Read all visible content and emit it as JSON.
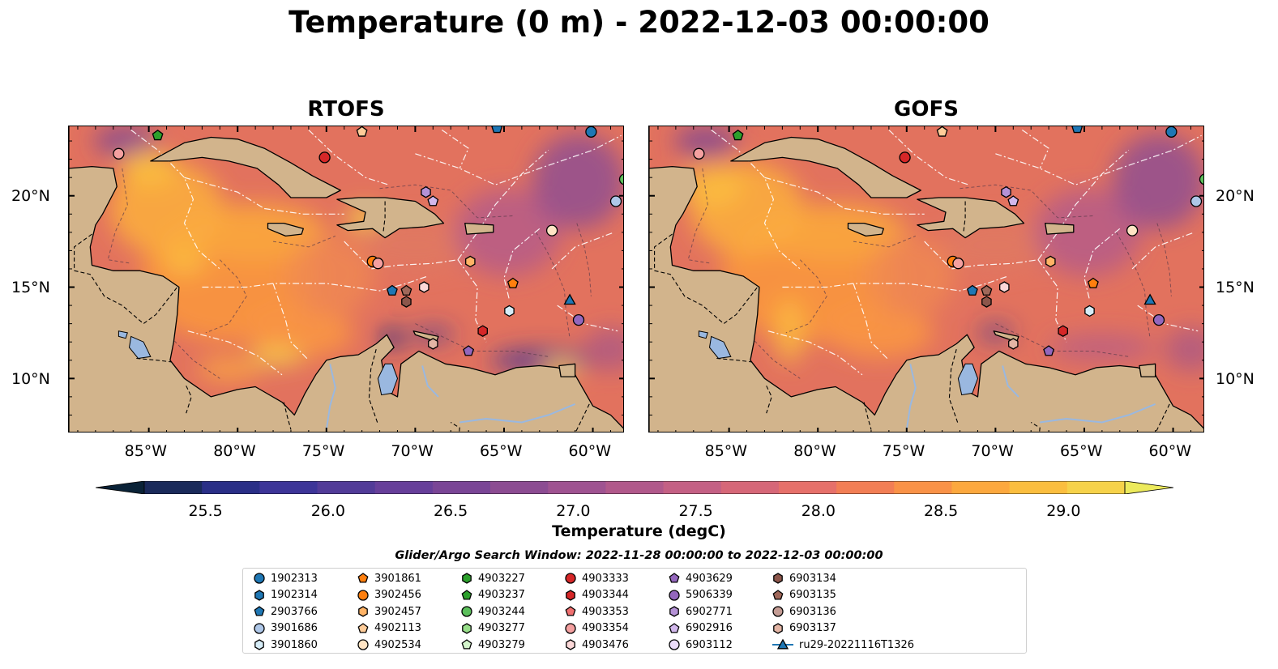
{
  "title": "Temperature (0 m) - 2022-12-03 00:00:00",
  "panels": [
    {
      "title": "RTOFS"
    },
    {
      "title": "GOFS"
    }
  ],
  "axes": {
    "lon_ticks": [
      "85°W",
      "80°W",
      "75°W",
      "70°W",
      "65°W",
      "60°W"
    ],
    "lat_ticks": [
      "20°N",
      "15°N",
      "10°N"
    ],
    "lon_range": [
      -89.5,
      -58.2
    ],
    "lat_range": [
      7.0,
      23.8
    ]
  },
  "colorbar": {
    "label": "Temperature (degC)",
    "ticks": [
      "25.5",
      "26.0",
      "26.5",
      "27.0",
      "27.5",
      "28.0",
      "28.5",
      "29.0"
    ],
    "range": [
      25.25,
      29.25
    ],
    "colormap": "thermal",
    "extend": "both",
    "colors": [
      "#0a2237",
      "#1a2a5a",
      "#2a2f87",
      "#3d3598",
      "#523b98",
      "#673f9a",
      "#7a4596",
      "#8c4c92",
      "#9f5391",
      "#b1598b",
      "#c46084",
      "#d66778",
      "#e6706a",
      "#f27e55",
      "#f99247",
      "#fca83e",
      "#fbbe3f",
      "#f6d24a",
      "#ecea5c"
    ]
  },
  "search_window": "Glider/Argo Search Window: 2022-11-28 00:00:00 to 2022-12-03 00:00:00",
  "legend": [
    {
      "label": "1902313",
      "color": "#1f77b4",
      "marker": "circle"
    },
    {
      "label": "1902314",
      "color": "#1f77b4",
      "marker": "hexagon"
    },
    {
      "label": "2903766",
      "color": "#1f77b4",
      "marker": "pentagon"
    },
    {
      "label": "3901686",
      "color": "#aec7e8",
      "marker": "circle"
    },
    {
      "label": "3901860",
      "color": "#d6ecf7",
      "marker": "hexagon"
    },
    {
      "label": "3901861",
      "color": "#ff7f0e",
      "marker": "pentagon"
    },
    {
      "label": "3902456",
      "color": "#ff7f0e",
      "marker": "circle"
    },
    {
      "label": "3902457",
      "color": "#ffb366",
      "marker": "hexagon"
    },
    {
      "label": "4902113",
      "color": "#ffcc99",
      "marker": "pentagon"
    },
    {
      "label": "4902534",
      "color": "#ffe4c4",
      "marker": "circle"
    },
    {
      "label": "4903227",
      "color": "#2ca02c",
      "marker": "hexagon"
    },
    {
      "label": "4903237",
      "color": "#2ca02c",
      "marker": "pentagon"
    },
    {
      "label": "4903244",
      "color": "#5cc05c",
      "marker": "circle"
    },
    {
      "label": "4903277",
      "color": "#98df8a",
      "marker": "hexagon"
    },
    {
      "label": "4903279",
      "color": "#d4f5cc",
      "marker": "pentagon"
    },
    {
      "label": "4903333",
      "color": "#d62728",
      "marker": "circle"
    },
    {
      "label": "4903344",
      "color": "#d62728",
      "marker": "hexagon"
    },
    {
      "label": "4903353",
      "color": "#f07070",
      "marker": "pentagon"
    },
    {
      "label": "4903354",
      "color": "#f4a0a0",
      "marker": "circle"
    },
    {
      "label": "4903476",
      "color": "#fcd8d8",
      "marker": "hexagon"
    },
    {
      "label": "4903629",
      "color": "#9467bd",
      "marker": "pentagon"
    },
    {
      "label": "5906339",
      "color": "#9467bd",
      "marker": "circle"
    },
    {
      "label": "6902771",
      "color": "#b592d6",
      "marker": "hexagon"
    },
    {
      "label": "6902916",
      "color": "#d2b8ec",
      "marker": "pentagon"
    },
    {
      "label": "6903112",
      "color": "#ecdcfa",
      "marker": "circle"
    },
    {
      "label": "6903134",
      "color": "#8c564b",
      "marker": "hexagon"
    },
    {
      "label": "6903135",
      "color": "#a0685a",
      "marker": "pentagon"
    },
    {
      "label": "6903136",
      "color": "#c49c94",
      "marker": "circle"
    },
    {
      "label": "6903137",
      "color": "#e3b5a5",
      "marker": "hexagon"
    },
    {
      "label": "ru29-20221116T1326",
      "color": "#1f77b4",
      "marker": "glider-triangle"
    }
  ],
  "float_positions": [
    {
      "id": "4903237",
      "lon": -84.5,
      "lat": 23.3
    },
    {
      "id": "4903354",
      "lon": -86.7,
      "lat": 22.3
    },
    {
      "id": "4903333",
      "lon": -75.1,
      "lat": 22.1
    },
    {
      "id": "4902113",
      "lon": -73.0,
      "lat": 23.5
    },
    {
      "id": "2903766",
      "lon": -65.4,
      "lat": 23.7
    },
    {
      "id": "1902313",
      "lon": -60.1,
      "lat": 23.5
    },
    {
      "id": "4903244",
      "lon": -58.2,
      "lat": 20.9
    },
    {
      "id": "3901686",
      "lon": -58.7,
      "lat": 19.7
    },
    {
      "id": "6902771",
      "lon": -69.4,
      "lat": 20.2
    },
    {
      "id": "6902916",
      "lon": -69.0,
      "lat": 19.7
    },
    {
      "id": "4902534",
      "lon": -62.3,
      "lat": 18.1
    },
    {
      "id": "3902456",
      "lon": -72.4,
      "lat": 16.4
    },
    {
      "id": "4903354",
      "lon": -72.1,
      "lat": 16.3
    },
    {
      "id": "3902457",
      "lon": -66.9,
      "lat": 16.4
    },
    {
      "id": "3901861",
      "lon": -64.5,
      "lat": 15.2
    },
    {
      "id": "2903766",
      "lon": -71.3,
      "lat": 14.8
    },
    {
      "id": "6903135",
      "lon": -70.5,
      "lat": 14.8
    },
    {
      "id": "6903134",
      "lon": -70.5,
      "lat": 14.2
    },
    {
      "id": "4903476",
      "lon": -69.5,
      "lat": 15.0
    },
    {
      "id": "3901860",
      "lon": -64.7,
      "lat": 13.7
    },
    {
      "id": "ru29-20221116T1326",
      "lon": -61.3,
      "lat": 14.3
    },
    {
      "id": "5906339",
      "lon": -60.8,
      "lat": 13.2
    },
    {
      "id": "4903344",
      "lon": -66.2,
      "lat": 12.6
    },
    {
      "id": "4903629",
      "lon": -67.0,
      "lat": 11.5
    },
    {
      "id": "6903137",
      "lon": -69.0,
      "lat": 11.9
    }
  ]
}
